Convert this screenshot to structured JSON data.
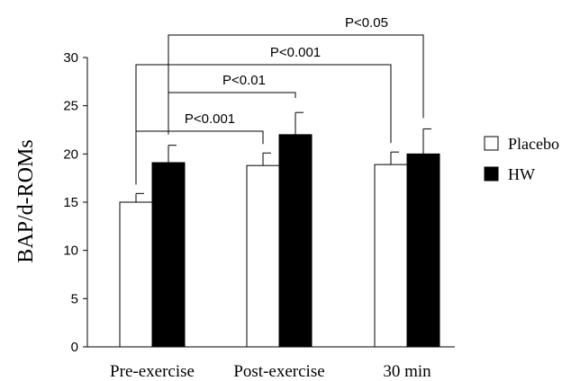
{
  "chart_data": {
    "type": "bar",
    "ylabel": "BAP/d-ROMs",
    "ylim": [
      0,
      30
    ],
    "yticks": [
      0,
      5,
      10,
      15,
      20,
      25,
      30
    ],
    "categories": [
      "Pre-exercise",
      "Post-exercise",
      "30 min"
    ],
    "series": [
      {
        "name": "Placebo",
        "values": [
          15.0,
          18.8,
          18.9
        ],
        "errors": [
          0.9,
          1.3,
          1.3
        ],
        "color": "#ffffff"
      },
      {
        "name": "HW",
        "values": [
          19.1,
          22.0,
          20.0
        ],
        "errors": [
          1.8,
          2.3,
          2.6
        ],
        "color": "#000000"
      }
    ],
    "legend_position": "right",
    "comparisons": [
      {
        "label": "P<0.001",
        "from": {
          "category": "Pre-exercise",
          "series": "Placebo"
        },
        "to": {
          "category": "Post-exercise",
          "series": "Placebo"
        }
      },
      {
        "label": "P<0.01",
        "from": {
          "category": "Pre-exercise",
          "series": "HW"
        },
        "to": {
          "category": "Post-exercise",
          "series": "HW"
        }
      },
      {
        "label": "P<0.001",
        "from": {
          "category": "Pre-exercise",
          "series": "Placebo"
        },
        "to": {
          "category": "30 min",
          "series": "Placebo"
        }
      },
      {
        "label": "P<0.05",
        "from": {
          "category": "Pre-exercise",
          "series": "HW"
        },
        "to": {
          "category": "30 min",
          "series": "HW"
        }
      }
    ]
  }
}
